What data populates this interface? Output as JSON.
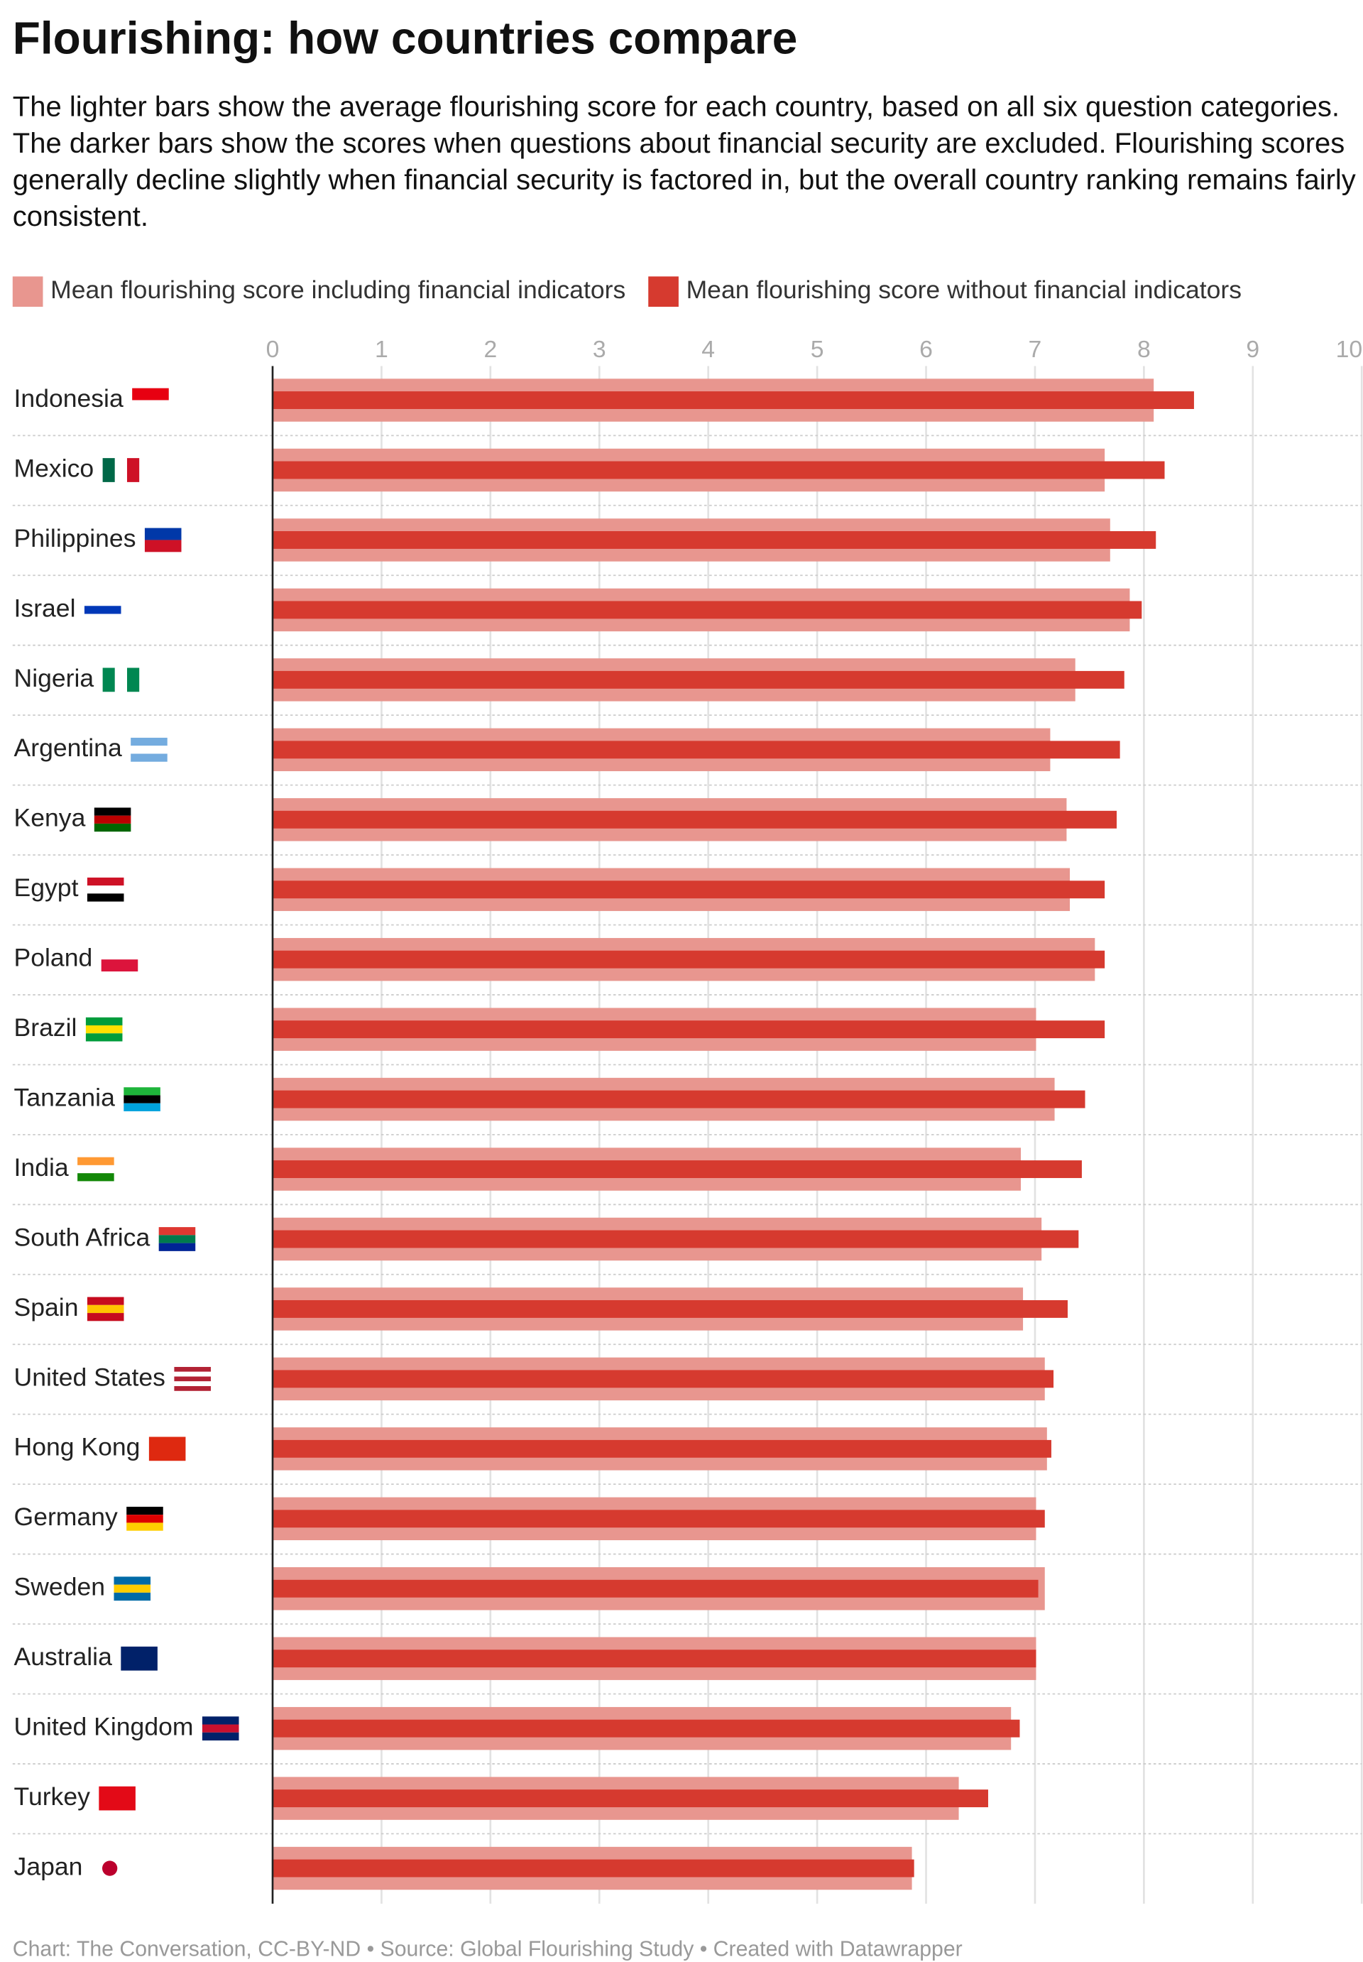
{
  "chart_data": {
    "type": "bar",
    "orientation": "horizontal",
    "title": "Flourishing: how countries compare",
    "subtitle": "The lighter bars show the average flourishing score for each country, based on all six question categories. The darker bars show the scores when questions about financial security are excluded. Flourishing scores generally decline slightly when financial security is factored in, but the overall country ranking remains fairly consistent.",
    "categories": [
      "Indonesia",
      "Mexico",
      "Philippines",
      "Israel",
      "Nigeria",
      "Argentina",
      "Kenya",
      "Egypt",
      "Poland",
      "Brazil",
      "Tanzania",
      "India",
      "South Africa",
      "Spain",
      "United States",
      "Hong Kong",
      "Germany",
      "Sweden",
      "Australia",
      "United Kingdom",
      "Turkey",
      "Japan"
    ],
    "series": [
      {
        "name": "Mean flourishing score including financial indicators",
        "color": "#e8968f",
        "values": [
          8.09,
          7.64,
          7.69,
          7.87,
          7.37,
          7.14,
          7.29,
          7.32,
          7.55,
          7.01,
          7.18,
          6.87,
          7.06,
          6.89,
          7.09,
          7.11,
          7.01,
          7.09,
          7.01,
          6.78,
          6.3,
          5.87
        ]
      },
      {
        "name": "Mean flourishing score without financial indicators",
        "color": "#d63a2f",
        "values": [
          8.46,
          8.19,
          8.11,
          7.98,
          7.82,
          7.78,
          7.75,
          7.64,
          7.64,
          7.64,
          7.46,
          7.43,
          7.4,
          7.3,
          7.17,
          7.15,
          7.09,
          7.03,
          7.01,
          6.86,
          6.57,
          5.89
        ]
      }
    ],
    "xlim": [
      0,
      10
    ],
    "xticks": [
      0,
      1,
      2,
      3,
      4,
      5,
      6,
      7,
      8,
      9,
      10
    ],
    "grid": true,
    "source": "Chart: The Conversation, CC-BY-ND • Source: Global Flourishing Study • Created with Datawrapper"
  }
}
